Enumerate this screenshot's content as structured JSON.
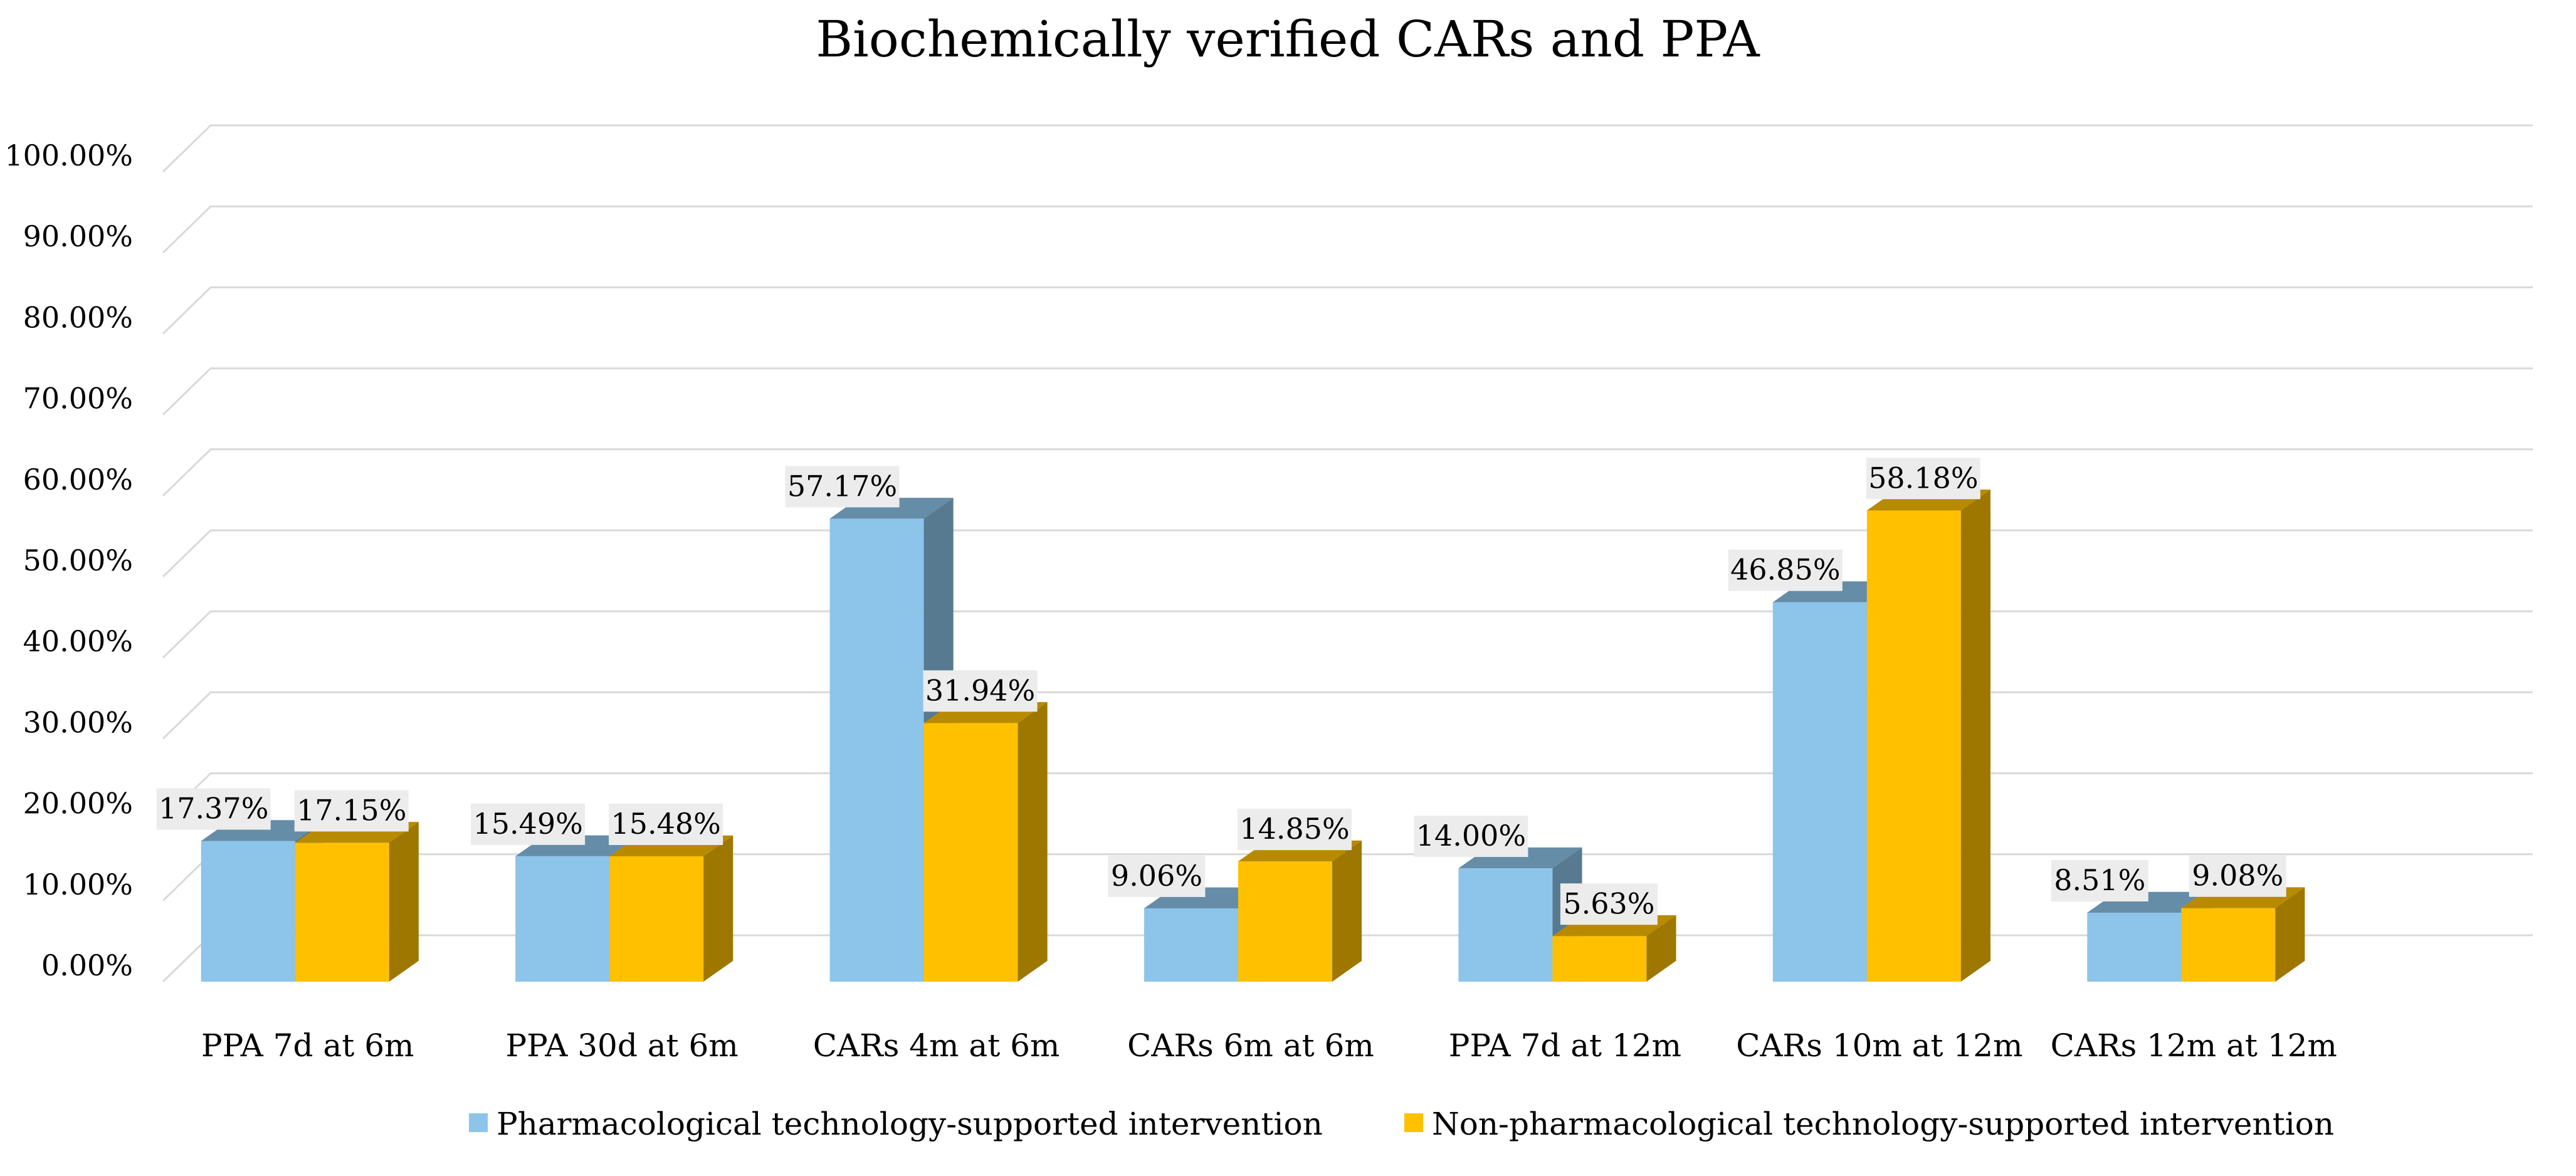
{
  "chart_data": {
    "type": "bar",
    "title": "Biochemically verified CARs and PPA",
    "xlabel": "",
    "ylabel": "",
    "ylim": [
      0,
      100
    ],
    "y_tick_labels": [
      "0.00%",
      "10.00%",
      "20.00%",
      "30.00%",
      "40.00%",
      "50.00%",
      "60.00%",
      "70.00%",
      "80.00%",
      "90.00%",
      "100.00%"
    ],
    "grid": true,
    "legend_position": "bottom",
    "categories": [
      "PPA 7d at 6m",
      "PPA 30d at 6m",
      "CARs 4m at 6m",
      "CARs 6m at 6m",
      "PPA 7d at 12m",
      "CARs 10m at 12m",
      "CARs 12m at 12m"
    ],
    "series": [
      {
        "name": "Pharmacological technology-supported intervention",
        "color": "#8DC4EA",
        "values": [
          17.37,
          15.49,
          57.17,
          9.06,
          14.0,
          46.85,
          8.51
        ],
        "labels": [
          "17.37%",
          "15.49%",
          "57.17%",
          "9.06%",
          "14.00%",
          "46.85%",
          "8.51%"
        ]
      },
      {
        "name": "Non-pharmacological technology-supported intervention",
        "color": "#FFC000",
        "values": [
          17.15,
          15.48,
          31.94,
          14.85,
          5.63,
          58.18,
          9.08
        ],
        "labels": [
          "17.15%",
          "15.48%",
          "31.94%",
          "14.85%",
          "5.63%",
          "58.18%",
          "9.08%"
        ]
      }
    ]
  }
}
